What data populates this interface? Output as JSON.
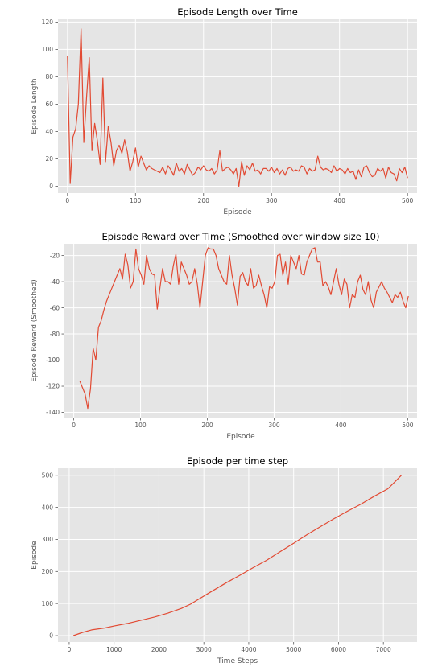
{
  "chart_data": [
    {
      "type": "line",
      "title": "Episode Length over Time",
      "xlabel": "Episode",
      "ylabel": "Episode Length",
      "xlim": [
        -14,
        514
      ],
      "ylim": [
        -5,
        122
      ],
      "xticks": [
        0,
        100,
        200,
        300,
        400,
        500
      ],
      "yticks": [
        0,
        20,
        40,
        60,
        80,
        100,
        120
      ],
      "grid": true,
      "color": "#e24a33",
      "series": [
        {
          "x_start": 0,
          "x_step": 4,
          "values": [
            95,
            2,
            36,
            42,
            60,
            115,
            32,
            65,
            94,
            26,
            46,
            33,
            16,
            79,
            18,
            44,
            32,
            15,
            26,
            30,
            24,
            34,
            25,
            11,
            18,
            28,
            14,
            22,
            17,
            12,
            15,
            13,
            12,
            11,
            10,
            14,
            9,
            15,
            12,
            8,
            17,
            11,
            13,
            9,
            16,
            12,
            8,
            10,
            14,
            12,
            15,
            12,
            11,
            13,
            9,
            12,
            26,
            11,
            13,
            14,
            12,
            9,
            13,
            0,
            18,
            8,
            15,
            12,
            17,
            11,
            12,
            9,
            13,
            13,
            11,
            14,
            10,
            13,
            9,
            12,
            8,
            13,
            14,
            11,
            12,
            11,
            15,
            14,
            9,
            13,
            11,
            12,
            22,
            14,
            12,
            13,
            12,
            10,
            15,
            11,
            13,
            12,
            9,
            13,
            10,
            11,
            5,
            12,
            7,
            14,
            15,
            10,
            7,
            8,
            13,
            11,
            13,
            6,
            14,
            10,
            9,
            4,
            13,
            10,
            14,
            6
          ]
        }
      ]
    },
    {
      "type": "line",
      "title": "Episode Reward over Time (Smoothed over window size 10)",
      "xlabel": "Episode",
      "ylabel": "Episode Reward (Smoothed)",
      "xlim": [
        -14,
        514
      ],
      "ylim": [
        -144,
        -11
      ],
      "xticks": [
        0,
        100,
        200,
        300,
        400,
        500
      ],
      "yticks": [
        -140,
        -120,
        -100,
        -80,
        -60,
        -40,
        -20
      ],
      "grid": true,
      "color": "#e24a33",
      "series": [
        {
          "x_start": 9,
          "x_step": 4,
          "values": [
            -116,
            -121,
            -126,
            -137,
            -122,
            -91,
            -100,
            -75,
            -70,
            -62,
            -55,
            -50,
            -45,
            -40,
            -35,
            -30,
            -38,
            -19,
            -27,
            -45,
            -40,
            -15,
            -30,
            -35,
            -42,
            -20,
            -30,
            -34,
            -35,
            -61,
            -45,
            -30,
            -40,
            -40,
            -42,
            -28,
            -19,
            -42,
            -25,
            -30,
            -35,
            -42,
            -40,
            -30,
            -42,
            -60,
            -40,
            -20,
            -14,
            -15,
            -15,
            -20,
            -30,
            -35,
            -40,
            -42,
            -20,
            -35,
            -45,
            -58,
            -36,
            -33,
            -40,
            -43,
            -30,
            -45,
            -43,
            -35,
            -43,
            -50,
            -60,
            -44,
            -45,
            -40,
            -20,
            -19,
            -35,
            -25,
            -42,
            -20,
            -25,
            -30,
            -20,
            -34,
            -35,
            -25,
            -20,
            -15,
            -14,
            -25,
            -25,
            -43,
            -40,
            -44,
            -50,
            -40,
            -30,
            -42,
            -50,
            -38,
            -42,
            -60,
            -50,
            -52,
            -40,
            -35,
            -46,
            -50,
            -40,
            -54,
            -60,
            -48,
            -44,
            -40,
            -45,
            -48,
            -52,
            -56,
            -50,
            -52,
            -48,
            -55,
            -60,
            -51
          ]
        }
      ]
    },
    {
      "type": "line",
      "title": "Episode per time step",
      "xlabel": "Time Steps",
      "ylabel": "Episode",
      "xlim": [
        -250,
        7750
      ],
      "ylim": [
        -20,
        522
      ],
      "xticks": [
        0,
        1000,
        2000,
        3000,
        4000,
        5000,
        6000,
        7000
      ],
      "yticks": [
        0,
        100,
        200,
        300,
        400,
        500
      ],
      "grid": true,
      "color": "#e24a33",
      "series": [
        {
          "x": [
            95,
            300,
            500,
            800,
            1000,
            1300,
            1600,
            1900,
            2200,
            2500,
            2700,
            2900,
            3200,
            3500,
            3800,
            4100,
            4400,
            4700,
            5000,
            5300,
            5600,
            5900,
            6200,
            6500,
            6800,
            7100,
            7400
          ],
          "y": [
            0,
            10,
            18,
            24,
            30,
            38,
            48,
            58,
            70,
            85,
            98,
            115,
            140,
            165,
            188,
            212,
            235,
            262,
            288,
            315,
            340,
            365,
            388,
            410,
            435,
            458,
            500
          ]
        }
      ]
    }
  ]
}
